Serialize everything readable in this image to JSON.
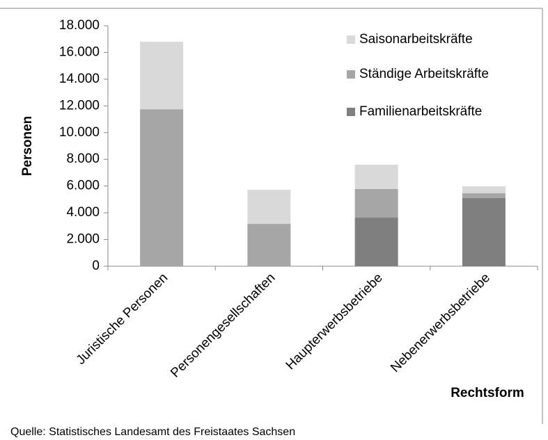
{
  "chart_data": {
    "type": "stacked_bar",
    "categories": [
      "Juristische Personen",
      "Personengesellschaften",
      "Haupterwerbsbetriebe",
      "Nebenerwerbsbetriebe"
    ],
    "series": [
      {
        "name": "Familienarbeitskräfte",
        "color": "#7f7f7f",
        "values": [
          0,
          0,
          3640,
          5100
        ]
      },
      {
        "name": "Ständige Arbeitskräfte",
        "color": "#a6a6a6",
        "values": [
          11750,
          3170,
          2135,
          360
        ]
      },
      {
        "name": "Saisonarbeitskräfte",
        "color": "#d9d9d9",
        "values": [
          5050,
          2550,
          1825,
          520
        ]
      }
    ],
    "ylabel": "Personen",
    "xlabel": "Rechtsform",
    "source": "Quelle: Statistisches Landesamt des Freistaates Sachsen",
    "ylim": [
      0,
      18000
    ],
    "yticks": [
      0,
      {
        "value": 2000,
        "label": "2.000"
      },
      {
        "value": 4000,
        "label": "4.000"
      },
      {
        "value": 6000,
        "label": "6.000"
      },
      {
        "value": 8000,
        "label": "8.000"
      },
      {
        "value": 10000,
        "label": "10.000"
      },
      {
        "value": 12000,
        "label": "12.000"
      },
      {
        "value": 14000,
        "label": "14.000"
      },
      {
        "value": 16000,
        "label": "16.000"
      },
      {
        "value": 18000,
        "label": "18.000"
      }
    ],
    "grid": false,
    "legend": "top-right"
  }
}
